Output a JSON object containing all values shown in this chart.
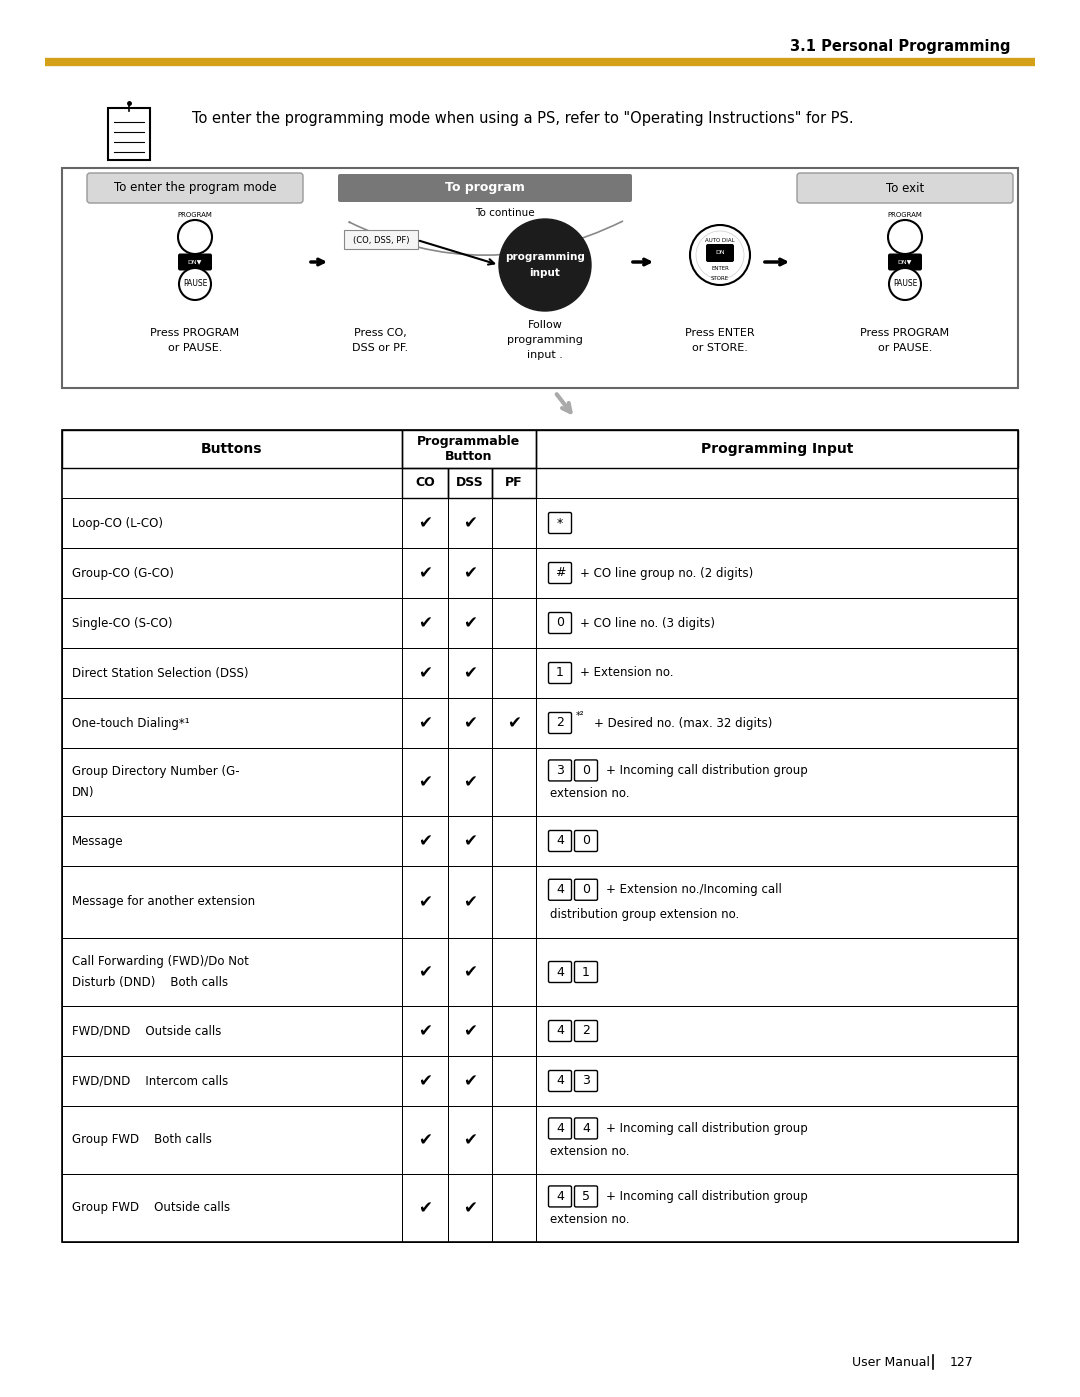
{
  "title": "3.1 Personal Programming",
  "gold_line_color": "#D4A017",
  "note_text": "To enter the programming mode when using a PS, refer to \"Operating Instructions\" for PS.",
  "diagram": {
    "box1_label": "To enter the program mode",
    "box2_label": "To program",
    "box3_label": "To exit",
    "continue_label": "To continue",
    "press1_line1": "Press PROGRAM",
    "press1_line2": "or PAUSE.",
    "press_co_line1": "Press CO,",
    "press_co_line2": "DSS or PF.",
    "follow_line1": "Follow",
    "follow_line2": "programming",
    "follow_line3": "input .",
    "press_enter_line1": "Press ENTER",
    "press_enter_line2": "or STORE.",
    "press2_line1": "Press PROGRAM",
    "press2_line2": "or PAUSE."
  },
  "table": {
    "rows": [
      {
        "button": "Loop-CO (L-CO)",
        "co": true,
        "dss": true,
        "pf": false,
        "keys": [
          "*"
        ],
        "superscript": "",
        "extra": ""
      },
      {
        "button": "Group-CO (G-CO)",
        "co": true,
        "dss": true,
        "pf": false,
        "keys": [
          "#"
        ],
        "superscript": "",
        "extra": "+ CO line group no. (2 digits)"
      },
      {
        "button": "Single-CO (S-CO)",
        "co": true,
        "dss": true,
        "pf": false,
        "keys": [
          "0"
        ],
        "superscript": "",
        "extra": "+ CO line no. (3 digits)"
      },
      {
        "button": "Direct Station Selection (DSS)",
        "co": true,
        "dss": true,
        "pf": false,
        "keys": [
          "1"
        ],
        "superscript": "",
        "extra": "+ Extension no."
      },
      {
        "button": "One-touch Dialing*¹",
        "co": true,
        "dss": true,
        "pf": true,
        "keys": [
          "2"
        ],
        "superscript": "*²",
        "extra": "+ Desired no. (max. 32 digits)"
      },
      {
        "button": "Group Directory Number (G-\nDN)",
        "co": true,
        "dss": true,
        "pf": false,
        "keys": [
          "3",
          "0"
        ],
        "superscript": "",
        "extra": "+ Incoming call distribution group\nextension no."
      },
      {
        "button": "Message",
        "co": true,
        "dss": true,
        "pf": false,
        "keys": [
          "4",
          "0"
        ],
        "superscript": "",
        "extra": ""
      },
      {
        "button": "Message for another extension",
        "co": true,
        "dss": true,
        "pf": false,
        "keys": [
          "4",
          "0"
        ],
        "superscript": "",
        "extra": "+ Extension no./Incoming call\ndistribution group extension no."
      },
      {
        "button": "Call Forwarding (FWD)/Do Not\nDisturb (DND)    Both calls",
        "co": true,
        "dss": true,
        "pf": false,
        "keys": [
          "4",
          "1"
        ],
        "superscript": "",
        "extra": ""
      },
      {
        "button": "FWD/DND    Outside calls",
        "co": true,
        "dss": true,
        "pf": false,
        "keys": [
          "4",
          "2"
        ],
        "superscript": "",
        "extra": ""
      },
      {
        "button": "FWD/DND    Intercom calls",
        "co": true,
        "dss": true,
        "pf": false,
        "keys": [
          "4",
          "3"
        ],
        "superscript": "",
        "extra": ""
      },
      {
        "button": "Group FWD    Both calls",
        "co": true,
        "dss": true,
        "pf": false,
        "keys": [
          "4",
          "4"
        ],
        "superscript": "",
        "extra": "+ Incoming call distribution group\nextension no."
      },
      {
        "button": "Group FWD    Outside calls",
        "co": true,
        "dss": true,
        "pf": false,
        "keys": [
          "4",
          "5"
        ],
        "superscript": "",
        "extra": "+ Incoming call distribution group\nextension no."
      }
    ]
  },
  "bg_color": "#ffffff"
}
